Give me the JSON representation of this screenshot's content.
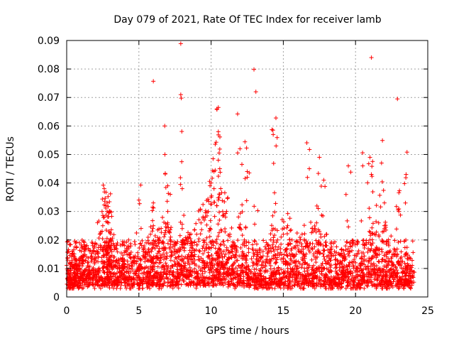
{
  "chart_data": {
    "type": "scatter",
    "title": "Day 079 of 2021, Rate Of TEC Index for receiver lamb",
    "xlabel": "GPS time / hours",
    "ylabel": "ROTI / TECUs",
    "xlim": [
      0,
      25
    ],
    "ylim": [
      0,
      0.09
    ],
    "x_ticks": [
      0,
      5,
      10,
      15,
      20,
      25
    ],
    "x_tick_labels": [
      "0",
      "5",
      "10",
      "15",
      "20",
      "25"
    ],
    "y_ticks": [
      0,
      0.01,
      0.02,
      0.03,
      0.04,
      0.05,
      0.06,
      0.07,
      0.08,
      0.09
    ],
    "y_tick_labels": [
      "0",
      "0.01",
      "0.02",
      "0.03",
      "0.04",
      "0.05",
      "0.06",
      "0.07",
      "0.08",
      "0.09"
    ],
    "grid": true,
    "marker": "plus",
    "color": "#ff0000",
    "series": [
      {
        "x": [
          0.1,
          0.2,
          0.3,
          0.4,
          0.5,
          0.7,
          0.8,
          1.0,
          1.2,
          1.5,
          1.8,
          2.0,
          2.3,
          2.5,
          2.6,
          2.7,
          2.8,
          2.9,
          3.0,
          3.1,
          3.3,
          3.5,
          3.8,
          4.0,
          4.3,
          4.6,
          5.0,
          5.3,
          5.5,
          5.8,
          6.0,
          6.2,
          6.4,
          6.6,
          6.8,
          7.0,
          7.2,
          7.5,
          7.8,
          8.0,
          8.3,
          8.6,
          9.0,
          9.3,
          9.6,
          9.8,
          10.0,
          10.2,
          10.4,
          10.5,
          10.6,
          10.8,
          11.0,
          11.3,
          11.6,
          12.0,
          12.3,
          12.6,
          13.0,
          13.3,
          13.6,
          14.0,
          14.3,
          14.6,
          15.0,
          15.3,
          15.6,
          16.0,
          16.3,
          16.6,
          17.0,
          17.3,
          17.6,
          18.0,
          18.3,
          18.6,
          19.0,
          19.3,
          19.6,
          20.0,
          20.3,
          20.6,
          21.0,
          21.3,
          21.6,
          22.0,
          22.3,
          22.6,
          23.0,
          23.3,
          23.6,
          23.9,
          0.15,
          0.35,
          0.6,
          0.9,
          1.1,
          1.4,
          1.7,
          2.1,
          2.4,
          2.65,
          2.75,
          2.85,
          2.95,
          3.2,
          3.6,
          4.1,
          4.5,
          5.1,
          5.6,
          6.1,
          6.5,
          6.9,
          7.3,
          7.7,
          8.1,
          8.5,
          9.1,
          9.5,
          9.9,
          10.1,
          10.3,
          10.45,
          10.55,
          10.7,
          11.1,
          11.5,
          11.9,
          12.2,
          12.5,
          12.9,
          13.2,
          13.5,
          13.9,
          14.2,
          14.5,
          14.9,
          15.2,
          15.5,
          15.9,
          16.2,
          16.5,
          16.9,
          17.2,
          17.5,
          17.9,
          18.2,
          18.5,
          18.9,
          19.2,
          19.5,
          19.9,
          20.2,
          20.5,
          20.9,
          21.2,
          21.5,
          21.9,
          22.2,
          22.5,
          22.9,
          23.2,
          23.5,
          23.8,
          2.6,
          2.8,
          3.0,
          6.0,
          6.8,
          7.0,
          7.9,
          8.0,
          10.0,
          10.4,
          10.5,
          10.5,
          10.6,
          12.0,
          12.5,
          13.1,
          14.3,
          14.5,
          17.5,
          17.8,
          19.5,
          21.0,
          21.1,
          21.8,
          22.0,
          23.0,
          5.0,
          10.2,
          12.5,
          16.8,
          20.5,
          23.5
        ],
        "y": [
          0.009,
          0.012,
          0.008,
          0.015,
          0.01,
          0.013,
          0.011,
          0.014,
          0.016,
          0.012,
          0.018,
          0.015,
          0.022,
          0.025,
          0.028,
          0.032,
          0.03,
          0.026,
          0.02,
          0.018,
          0.014,
          0.012,
          0.011,
          0.013,
          0.015,
          0.012,
          0.01,
          0.016,
          0.019,
          0.022,
          0.025,
          0.018,
          0.02,
          0.017,
          0.022,
          0.03,
          0.021,
          0.018,
          0.016,
          0.024,
          0.02,
          0.018,
          0.022,
          0.026,
          0.028,
          0.03,
          0.035,
          0.038,
          0.032,
          0.034,
          0.036,
          0.03,
          0.028,
          0.022,
          0.018,
          0.024,
          0.02,
          0.017,
          0.015,
          0.013,
          0.012,
          0.018,
          0.024,
          0.02,
          0.022,
          0.025,
          0.02,
          0.018,
          0.022,
          0.019,
          0.024,
          0.026,
          0.021,
          0.018,
          0.015,
          0.013,
          0.012,
          0.014,
          0.016,
          0.012,
          0.011,
          0.013,
          0.02,
          0.022,
          0.026,
          0.024,
          0.018,
          0.015,
          0.012,
          0.01,
          0.011,
          0.009,
          0.006,
          0.005,
          0.007,
          0.006,
          0.008,
          0.007,
          0.009,
          0.008,
          0.007,
          0.012,
          0.015,
          0.01,
          0.009,
          0.008,
          0.006,
          0.007,
          0.006,
          0.005,
          0.007,
          0.008,
          0.006,
          0.009,
          0.008,
          0.007,
          0.01,
          0.009,
          0.008,
          0.01,
          0.012,
          0.011,
          0.013,
          0.012,
          0.014,
          0.011,
          0.009,
          0.008,
          0.007,
          0.009,
          0.008,
          0.006,
          0.007,
          0.006,
          0.005,
          0.007,
          0.008,
          0.006,
          0.007,
          0.008,
          0.009,
          0.007,
          0.006,
          0.008,
          0.007,
          0.009,
          0.006,
          0.005,
          0.007,
          0.006,
          0.008,
          0.007,
          0.006,
          0.005,
          0.007,
          0.008,
          0.009,
          0.008,
          0.007,
          0.006,
          0.008,
          0.007,
          0.006,
          0.005,
          0.007,
          0.038,
          0.033,
          0.03,
          0.033,
          0.05,
          0.039,
          0.071,
          0.038,
          0.04,
          0.066,
          0.058,
          0.048,
          0.045,
          0.052,
          0.044,
          0.072,
          0.057,
          0.053,
          0.049,
          0.041,
          0.046,
          0.049,
          0.043,
          0.047,
          0.033,
          0.03,
          0.034,
          0.044,
          0.042,
          0.045,
          0.046,
          0.043
        ]
      }
    ],
    "outliers": {
      "x": [
        6.0,
        7.9,
        10.5,
        21.1,
        22.9
      ],
      "y": [
        0.0757,
        0.0889,
        0.0665,
        0.084,
        0.0695
      ]
    }
  }
}
